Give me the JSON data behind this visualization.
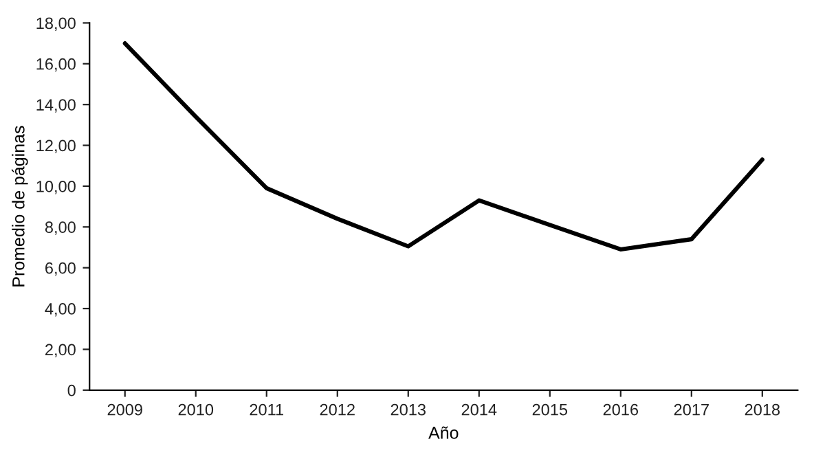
{
  "chart_data": {
    "type": "line",
    "xlabel": "Año",
    "ylabel": "Promedio de páginas",
    "categories": [
      "2009",
      "2010",
      "2011",
      "2012",
      "2013",
      "2014",
      "2015",
      "2016",
      "2017",
      "2018"
    ],
    "series": [
      {
        "color": "#000000",
        "values": [
          17.0,
          13.4,
          9.9,
          8.4,
          7.05,
          9.3,
          8.1,
          6.9,
          7.4,
          11.3
        ]
      }
    ],
    "ylim": [
      0,
      18
    ],
    "yticks": [
      0,
      {
        "value": 2,
        "label": "2,00"
      },
      {
        "value": 4,
        "label": "4,00"
      },
      {
        "value": 6,
        "label": "6,00"
      },
      {
        "value": 8,
        "label": "8,00"
      },
      {
        "value": 10,
        "label": "10,00"
      },
      {
        "value": 12,
        "label": "12,00"
      },
      {
        "value": 14,
        "label": "14,00"
      },
      {
        "value": 16,
        "label": "16,00"
      },
      {
        "value": 18,
        "label": "18,00"
      }
    ],
    "grid": false,
    "legend": false,
    "marker": "none",
    "line_style": "solid"
  }
}
